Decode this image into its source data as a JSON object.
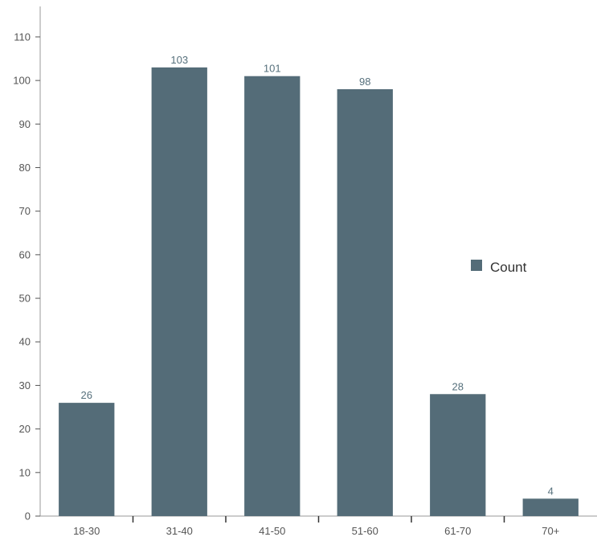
{
  "chart_data": {
    "type": "bar",
    "categories": [
      "18-30",
      "31-40",
      "41-50",
      "51-60",
      "61-70",
      "70+"
    ],
    "series": [
      {
        "name": "Count",
        "values": [
          26,
          103,
          101,
          98,
          28,
          4
        ]
      }
    ],
    "data_labels": [
      "26",
      "103",
      "101",
      "98",
      "28",
      "4"
    ],
    "title": "",
    "xlabel": "",
    "ylabel": "",
    "ylim": [
      0,
      117
    ],
    "yticks": [
      0,
      10,
      20,
      30,
      40,
      50,
      60,
      70,
      80,
      90,
      100,
      110
    ],
    "grid": false,
    "legend_position": "right",
    "colors": {
      "bar": "#546c78",
      "axis": "#999999"
    }
  }
}
